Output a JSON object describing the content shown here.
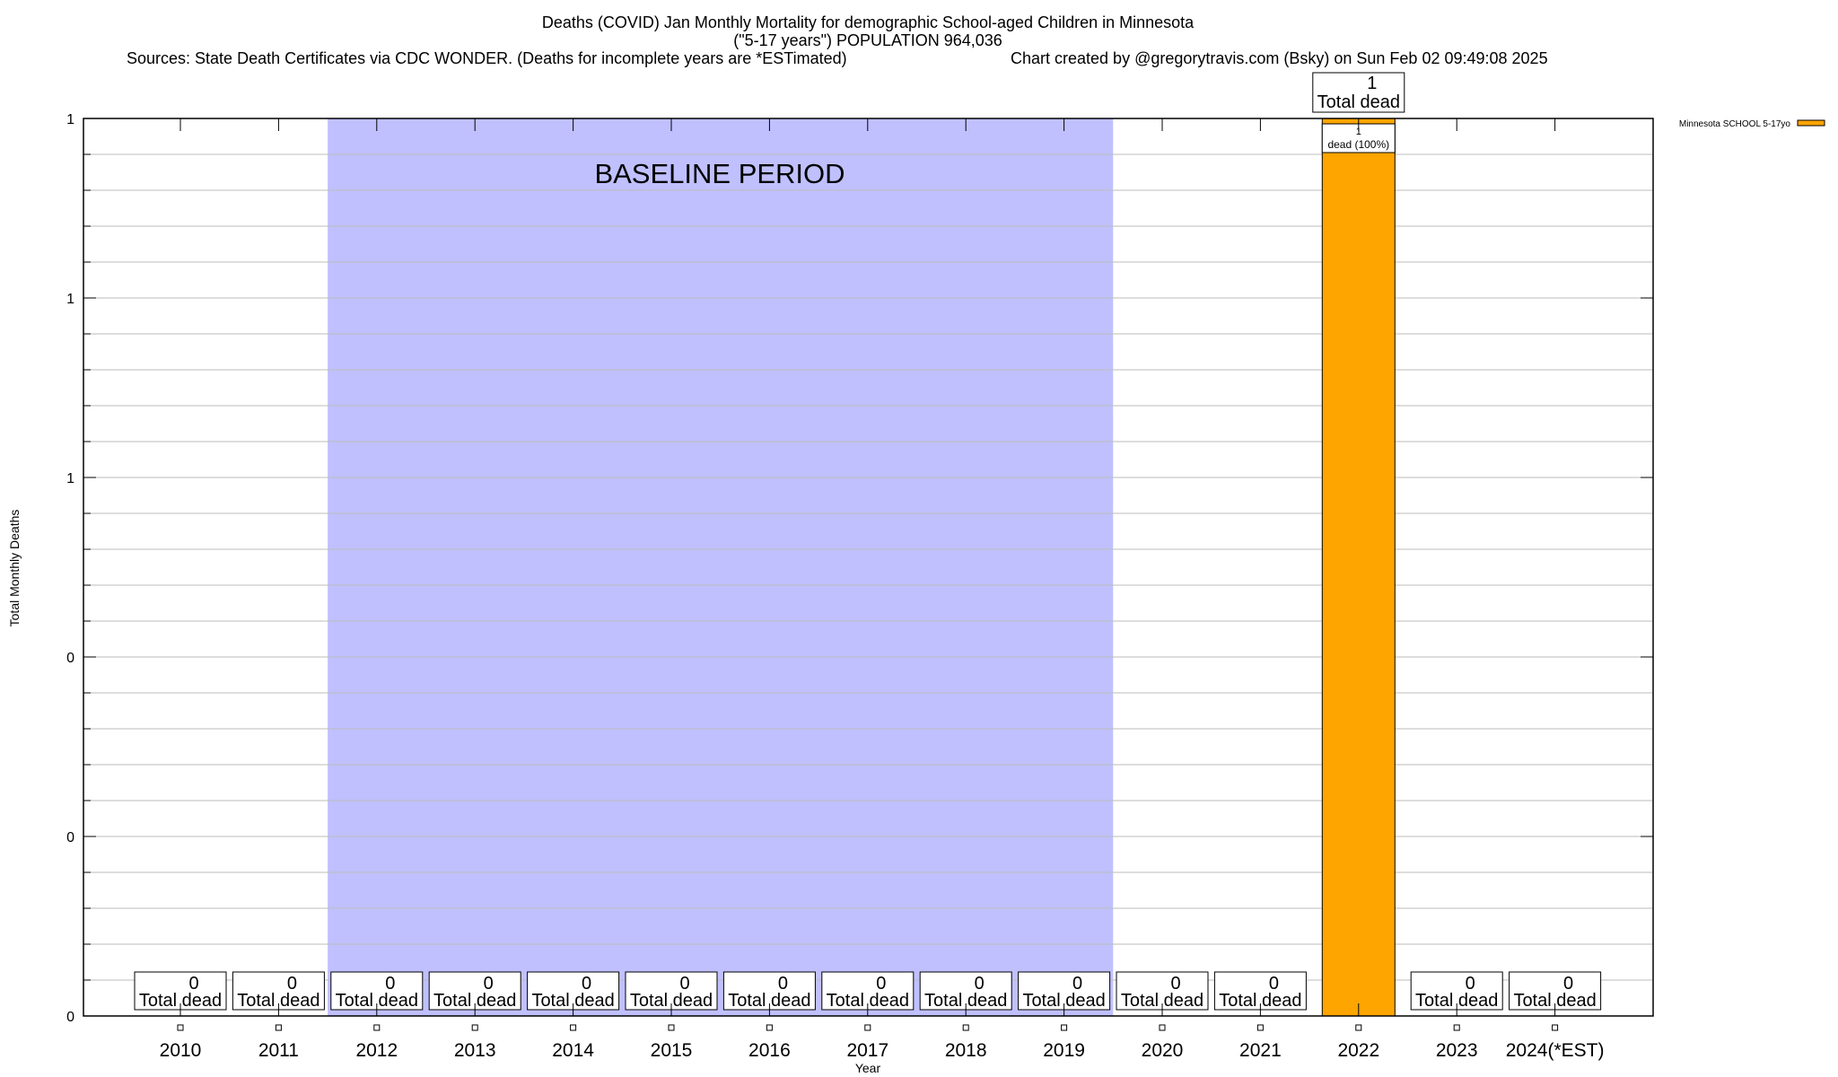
{
  "chart_data": {
    "type": "bar",
    "title": "Deaths (COVID) Jan Monthly Mortality for demographic School-aged Children in Minnesota",
    "subtitle": "(\"5-17 years\") POPULATION 964,036",
    "sources": "Sources: State Death Certificates via CDC WONDER. (Deaths for incomplete years are *ESTimated)",
    "credit": "Chart created by @gregorytravis.com (Bsky) on Sun Feb 02 09:49:08 2025",
    "xlabel": "Year",
    "ylabel": "Total Monthly Deaths",
    "ylim": [
      0,
      1
    ],
    "yticks": [
      0,
      0.2,
      0.4,
      0.6,
      0.8,
      1
    ],
    "ytick_labels": [
      "0",
      "0",
      "0",
      "1",
      "1",
      "1"
    ],
    "grid": true,
    "legend": {
      "placement": "top-right outside",
      "entries": [
        {
          "name": "Minnesota SCHOOL 5-17yo",
          "color": "#ffa500"
        }
      ]
    },
    "categories": [
      "2010",
      "2011",
      "2012",
      "2013",
      "2014",
      "2015",
      "2016",
      "2017",
      "2018",
      "2019",
      "2020",
      "2021",
      "2022",
      "2023",
      "2024(*EST)"
    ],
    "series": [
      {
        "name": "Minnesota SCHOOL 5-17yo",
        "values": [
          0,
          0,
          0,
          0,
          0,
          0,
          0,
          0,
          0,
          0,
          0,
          0,
          1,
          0,
          0
        ],
        "color": "#ffa500"
      }
    ],
    "total_label_suffix": "Total dead",
    "segment_label": {
      "category": "2022",
      "value": "1",
      "text": "dead (100%)"
    },
    "baseline": {
      "label": "BASELINE PERIOD",
      "from": "2012",
      "to": "2019",
      "color": "#c0c0ff"
    }
  }
}
